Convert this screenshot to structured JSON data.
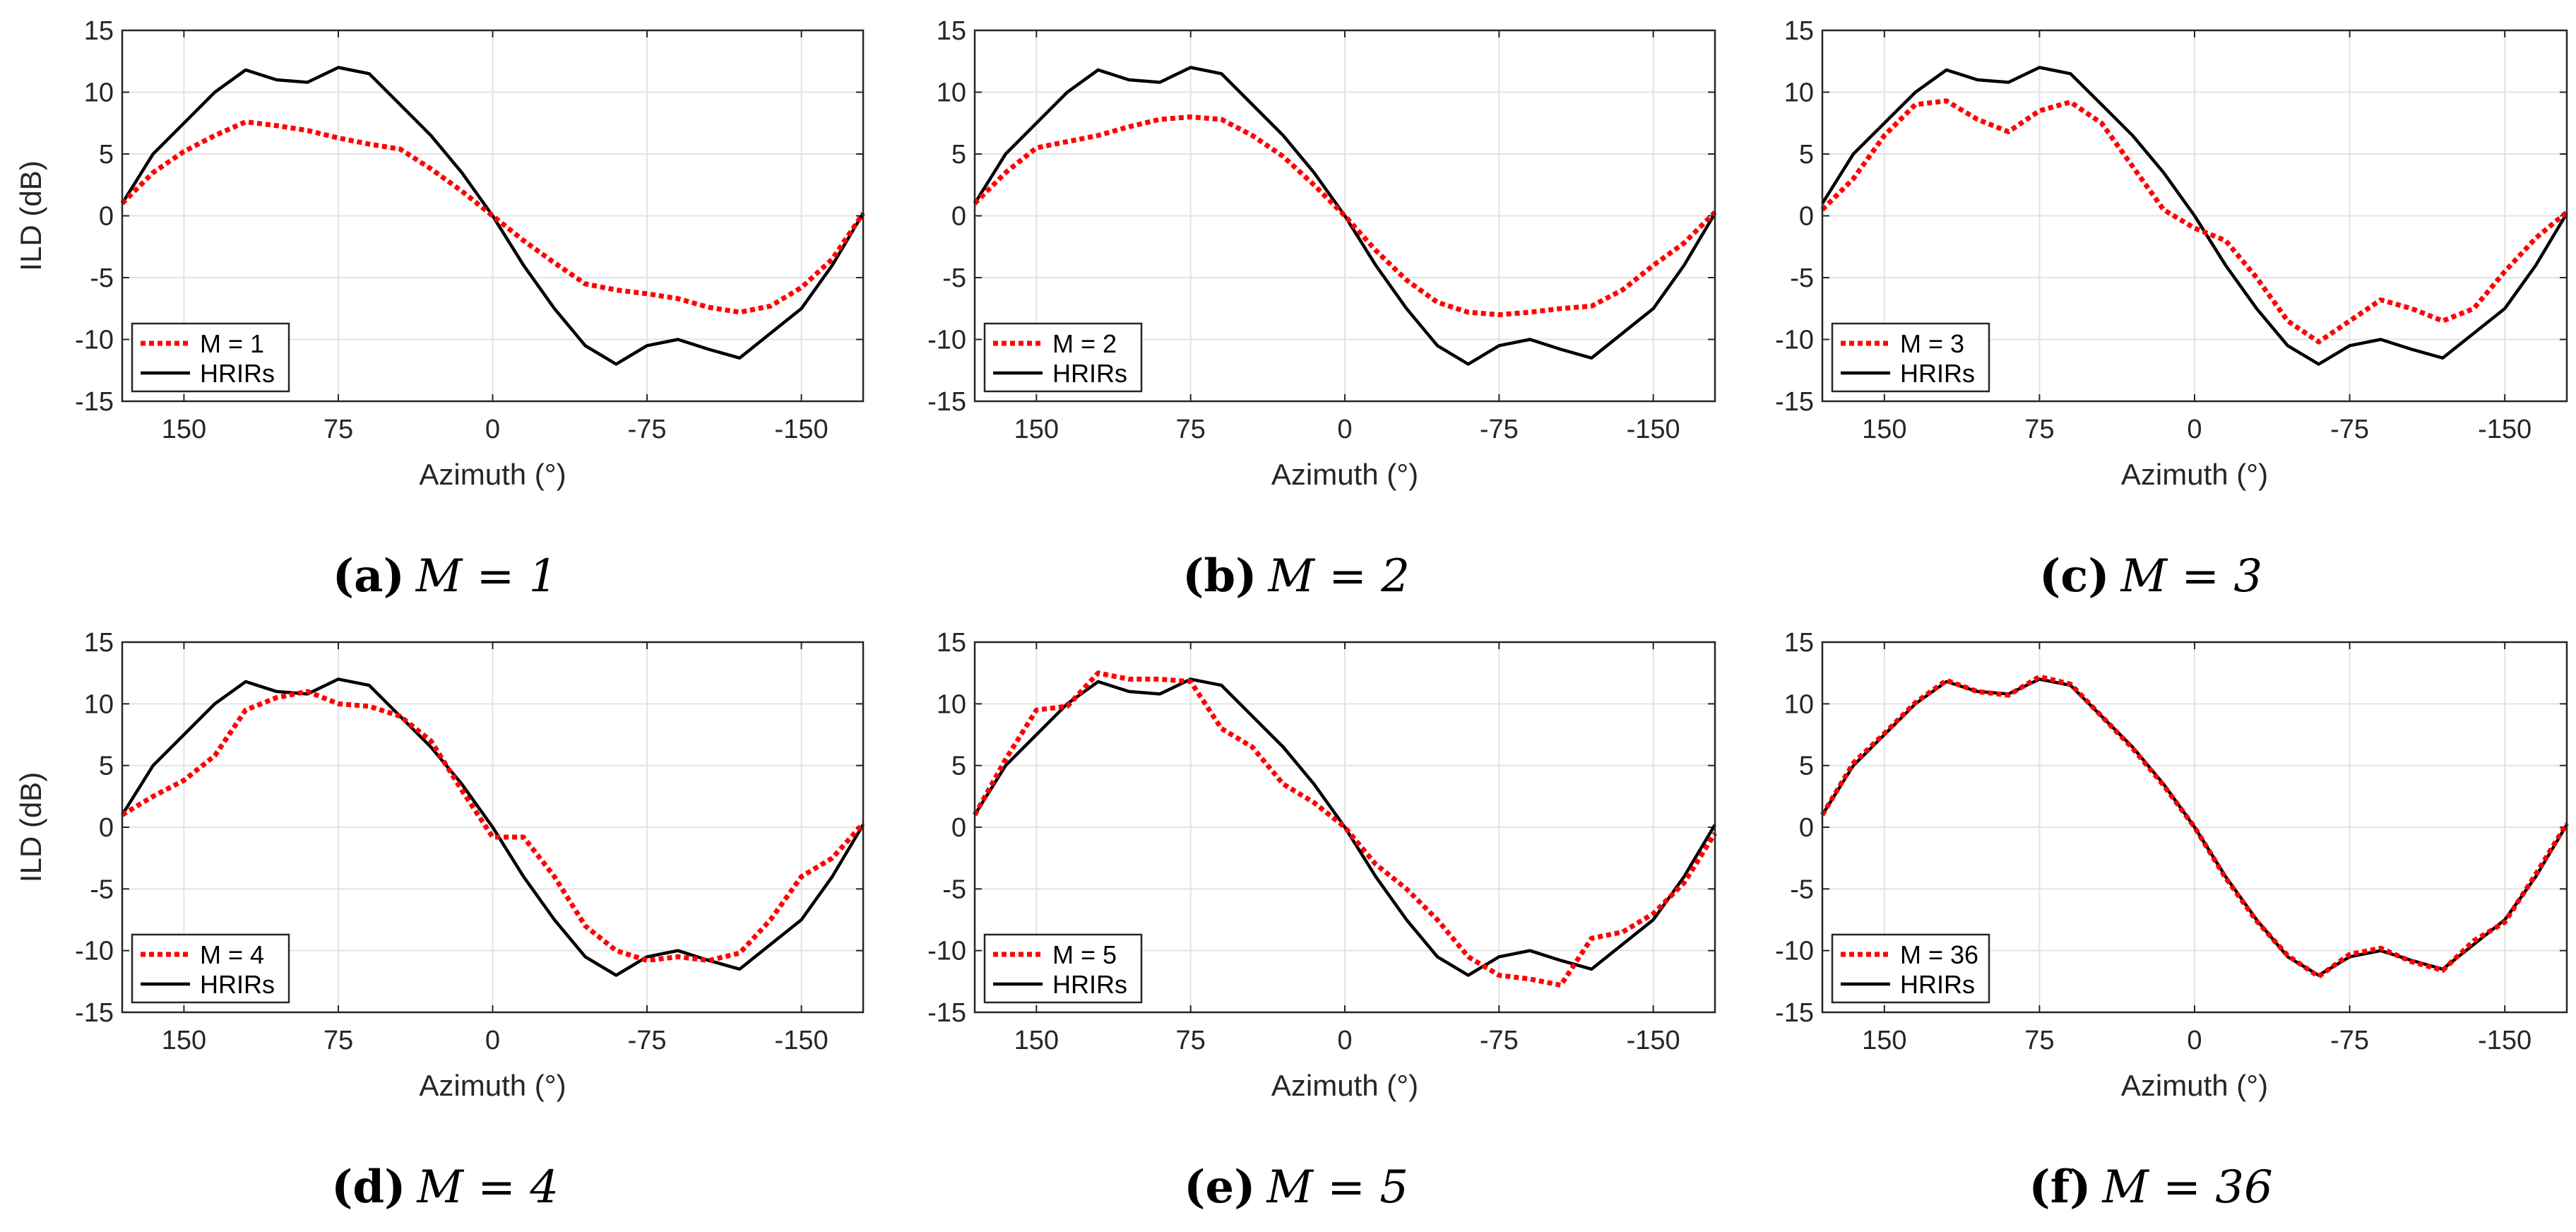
{
  "colors": {
    "model": "#ff0000",
    "hrir": "#000000",
    "grid": "#e3e3e3",
    "axis": "#262626"
  },
  "chart_data": [
    {
      "type": "line",
      "panel_label": "(a)",
      "caption_math": "M = 1",
      "title": "",
      "xlabel": "Azimuth (°)",
      "ylabel": "ILD (dB)",
      "xlim": [
        180,
        -180
      ],
      "ylim": [
        -15,
        15
      ],
      "xticks": [
        150,
        75,
        0,
        -75,
        -150
      ],
      "xtick_labels": [
        "150",
        "75",
        "0",
        "-75",
        "-150"
      ],
      "yticks": [
        15,
        10,
        5,
        0,
        -5,
        -10,
        -15
      ],
      "ytick_labels": [
        "15",
        "10",
        "5",
        "0",
        "-5",
        "-10",
        "-15"
      ],
      "legend": "bottom-left",
      "x": [
        180,
        165,
        150,
        135,
        120,
        105,
        90,
        75,
        60,
        45,
        30,
        15,
        0,
        -15,
        -30,
        -45,
        -60,
        -75,
        -90,
        -105,
        -120,
        -135,
        -150,
        -165,
        -180
      ],
      "series": [
        {
          "name": "M = 1",
          "style": "dotted",
          "values": [
            1,
            3.5,
            5.2,
            6.5,
            7.6,
            7.3,
            6.9,
            6.3,
            5.8,
            5.4,
            3.8,
            2,
            0,
            -2,
            -3.8,
            -5.5,
            -6,
            -6.3,
            -6.7,
            -7.4,
            -7.8,
            -7.3,
            -5.8,
            -3.5,
            0.2
          ]
        },
        {
          "name": "HRIRs",
          "style": "solid",
          "values": [
            1,
            5,
            7.5,
            10,
            11.8,
            11,
            10.8,
            12,
            11.5,
            9,
            6.5,
            3.5,
            0,
            -4,
            -7.5,
            -10.5,
            -12,
            -10.5,
            -10,
            -10.8,
            -11.5,
            -9.5,
            -7.5,
            -4,
            0.2
          ]
        }
      ]
    },
    {
      "type": "line",
      "panel_label": "(b)",
      "caption_math": "M = 2",
      "title": "",
      "xlabel": "Azimuth (°)",
      "ylabel": "",
      "xlim": [
        180,
        -180
      ],
      "ylim": [
        -15,
        15
      ],
      "xticks": [
        150,
        75,
        0,
        -75,
        -150
      ],
      "xtick_labels": [
        "150",
        "75",
        "0",
        "-75",
        "-150"
      ],
      "yticks": [
        15,
        10,
        5,
        0,
        -5,
        -10,
        -15
      ],
      "ytick_labels": [
        "15",
        "10",
        "5",
        "0",
        "-5",
        "-10",
        "-15"
      ],
      "legend": "bottom-left",
      "x": [
        180,
        165,
        150,
        135,
        120,
        105,
        90,
        75,
        60,
        45,
        30,
        15,
        0,
        -15,
        -30,
        -45,
        -60,
        -75,
        -90,
        -105,
        -120,
        -135,
        -150,
        -165,
        -180
      ],
      "series": [
        {
          "name": "M = 2",
          "style": "dotted",
          "values": [
            1,
            3.5,
            5.5,
            6,
            6.5,
            7.2,
            7.8,
            8,
            7.8,
            6.5,
            4.8,
            2.5,
            0,
            -2.8,
            -5.2,
            -7,
            -7.8,
            -8,
            -7.8,
            -7.5,
            -7.3,
            -6,
            -4,
            -2.2,
            0.3
          ]
        },
        {
          "name": "HRIRs",
          "style": "solid",
          "values": [
            1,
            5,
            7.5,
            10,
            11.8,
            11,
            10.8,
            12,
            11.5,
            9,
            6.5,
            3.5,
            0,
            -4,
            -7.5,
            -10.5,
            -12,
            -10.5,
            -10,
            -10.8,
            -11.5,
            -9.5,
            -7.5,
            -4,
            0.2
          ]
        }
      ]
    },
    {
      "type": "line",
      "panel_label": "(c)",
      "caption_math": "M = 3",
      "title": "",
      "xlabel": "Azimuth (°)",
      "ylabel": "",
      "xlim": [
        180,
        -180
      ],
      "ylim": [
        -15,
        15
      ],
      "xticks": [
        150,
        75,
        0,
        -75,
        -150
      ],
      "xtick_labels": [
        "150",
        "75",
        "0",
        "-75",
        "-150"
      ],
      "yticks": [
        15,
        10,
        5,
        0,
        -5,
        -10,
        -15
      ],
      "ytick_labels": [
        "15",
        "10",
        "5",
        "0",
        "-5",
        "-10",
        "-15"
      ],
      "legend": "bottom-left",
      "x": [
        180,
        165,
        150,
        135,
        120,
        105,
        90,
        75,
        60,
        45,
        30,
        15,
        0,
        -15,
        -30,
        -45,
        -60,
        -75,
        -90,
        -105,
        -120,
        -135,
        -150,
        -165,
        -180
      ],
      "series": [
        {
          "name": "M = 3",
          "style": "dotted",
          "values": [
            0.5,
            3,
            6.5,
            9,
            9.3,
            7.8,
            6.8,
            8.5,
            9.2,
            7.5,
            4,
            0.5,
            -1,
            -2,
            -5,
            -8.5,
            -10.2,
            -8.5,
            -6.8,
            -7.5,
            -8.5,
            -7.5,
            -4.5,
            -1.8,
            0.3
          ]
        },
        {
          "name": "HRIRs",
          "style": "solid",
          "values": [
            1,
            5,
            7.5,
            10,
            11.8,
            11,
            10.8,
            12,
            11.5,
            9,
            6.5,
            3.5,
            0,
            -4,
            -7.5,
            -10.5,
            -12,
            -10.5,
            -10,
            -10.8,
            -11.5,
            -9.5,
            -7.5,
            -4,
            0.2
          ]
        }
      ]
    },
    {
      "type": "line",
      "panel_label": "(d)",
      "caption_math": "M = 4",
      "title": "",
      "xlabel": "Azimuth (°)",
      "ylabel": "ILD (dB)",
      "xlim": [
        180,
        -180
      ],
      "ylim": [
        -15,
        15
      ],
      "xticks": [
        150,
        75,
        0,
        -75,
        -150
      ],
      "xtick_labels": [
        "150",
        "75",
        "0",
        "-75",
        "-150"
      ],
      "yticks": [
        15,
        10,
        5,
        0,
        -5,
        -10,
        -15
      ],
      "ytick_labels": [
        "15",
        "10",
        "5",
        "0",
        "-5",
        "-10",
        "-15"
      ],
      "legend": "bottom-left",
      "x": [
        180,
        165,
        150,
        135,
        120,
        105,
        90,
        75,
        60,
        45,
        30,
        15,
        0,
        -15,
        -30,
        -45,
        -60,
        -75,
        -90,
        -105,
        -120,
        -135,
        -150,
        -165,
        -180
      ],
      "series": [
        {
          "name": "M = 4",
          "style": "dotted",
          "values": [
            1,
            2.5,
            3.8,
            5.8,
            9.5,
            10.5,
            11,
            10,
            9.8,
            9,
            7,
            3,
            -0.8,
            -0.8,
            -4,
            -8,
            -10,
            -10.8,
            -10.5,
            -10.8,
            -10.2,
            -7.5,
            -4,
            -2.5,
            0.3
          ]
        },
        {
          "name": "HRIRs",
          "style": "solid",
          "values": [
            1,
            5,
            7.5,
            10,
            11.8,
            11,
            10.8,
            12,
            11.5,
            9,
            6.5,
            3.5,
            0,
            -4,
            -7.5,
            -10.5,
            -12,
            -10.5,
            -10,
            -10.8,
            -11.5,
            -9.5,
            -7.5,
            -4,
            0.2
          ]
        }
      ]
    },
    {
      "type": "line",
      "panel_label": "(e)",
      "caption_math": "M = 5",
      "title": "",
      "xlabel": "Azimuth (°)",
      "ylabel": "",
      "xlim": [
        180,
        -180
      ],
      "ylim": [
        -15,
        15
      ],
      "xticks": [
        150,
        75,
        0,
        -75,
        -150
      ],
      "xtick_labels": [
        "150",
        "75",
        "0",
        "-75",
        "-150"
      ],
      "yticks": [
        15,
        10,
        5,
        0,
        -5,
        -10,
        -15
      ],
      "ytick_labels": [
        "15",
        "10",
        "5",
        "0",
        "-5",
        "-10",
        "-15"
      ],
      "legend": "bottom-left",
      "x": [
        180,
        165,
        150,
        135,
        120,
        105,
        90,
        75,
        60,
        45,
        30,
        15,
        0,
        -15,
        -30,
        -45,
        -60,
        -75,
        -90,
        -105,
        -120,
        -135,
        -150,
        -165,
        -180
      ],
      "series": [
        {
          "name": "M = 5",
          "style": "dotted",
          "values": [
            1,
            5.5,
            9.5,
            9.8,
            12.5,
            12,
            12,
            11.8,
            8,
            6.5,
            3.5,
            2,
            0,
            -3,
            -5,
            -7.5,
            -10.5,
            -12,
            -12.3,
            -12.8,
            -9,
            -8.5,
            -7,
            -4.5,
            -0.5
          ]
        },
        {
          "name": "HRIRs",
          "style": "solid",
          "values": [
            1,
            5,
            7.5,
            10,
            11.8,
            11,
            10.8,
            12,
            11.5,
            9,
            6.5,
            3.5,
            0,
            -4,
            -7.5,
            -10.5,
            -12,
            -10.5,
            -10,
            -10.8,
            -11.5,
            -9.5,
            -7.5,
            -4,
            0.2
          ]
        }
      ]
    },
    {
      "type": "line",
      "panel_label": "(f)",
      "caption_math": "M = 36",
      "title": "",
      "xlabel": "Azimuth (°)",
      "ylabel": "",
      "xlim": [
        180,
        -180
      ],
      "ylim": [
        -15,
        15
      ],
      "xticks": [
        150,
        75,
        0,
        -75,
        -150
      ],
      "xtick_labels": [
        "150",
        "75",
        "0",
        "-75",
        "-150"
      ],
      "yticks": [
        15,
        10,
        5,
        0,
        -5,
        -10,
        -15
      ],
      "ytick_labels": [
        "15",
        "10",
        "5",
        "0",
        "-5",
        "-10",
        "-15"
      ],
      "legend": "bottom-left",
      "x": [
        180,
        165,
        150,
        135,
        120,
        105,
        90,
        75,
        60,
        45,
        30,
        15,
        0,
        -15,
        -30,
        -45,
        -60,
        -75,
        -90,
        -105,
        -120,
        -135,
        -150,
        -165,
        -180
      ],
      "series": [
        {
          "name": "M = 36",
          "style": "dotted",
          "values": [
            1,
            5.2,
            7.6,
            10.1,
            11.9,
            11,
            10.7,
            12.2,
            11.6,
            9,
            6.4,
            3.4,
            0,
            -4.1,
            -7.6,
            -10.4,
            -12.1,
            -10.3,
            -9.8,
            -10.9,
            -11.6,
            -9.2,
            -7.7,
            -3.8,
            0.3
          ]
        },
        {
          "name": "HRIRs",
          "style": "solid",
          "values": [
            1,
            5,
            7.5,
            10,
            11.8,
            11,
            10.8,
            12,
            11.5,
            9,
            6.5,
            3.5,
            0,
            -4,
            -7.5,
            -10.5,
            -12,
            -10.5,
            -10,
            -10.8,
            -11.5,
            -9.5,
            -7.5,
            -4,
            0.2
          ]
        }
      ]
    }
  ]
}
